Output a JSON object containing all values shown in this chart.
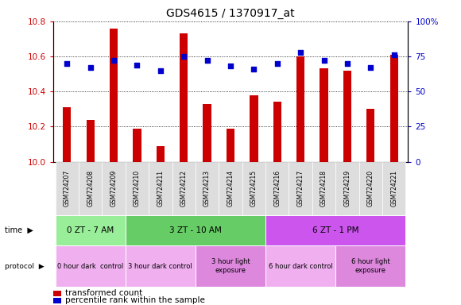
{
  "title": "GDS4615 / 1370917_at",
  "samples": [
    "GSM724207",
    "GSM724208",
    "GSM724209",
    "GSM724210",
    "GSM724211",
    "GSM724212",
    "GSM724213",
    "GSM724214",
    "GSM724215",
    "GSM724216",
    "GSM724217",
    "GSM724218",
    "GSM724219",
    "GSM724220",
    "GSM724221"
  ],
  "red_values": [
    10.31,
    10.24,
    10.76,
    10.19,
    10.09,
    10.73,
    10.33,
    10.19,
    10.38,
    10.34,
    10.6,
    10.53,
    10.52,
    10.3,
    10.61
  ],
  "blue_values": [
    70,
    67,
    72,
    69,
    65,
    75,
    72,
    68,
    66,
    70,
    78,
    72,
    70,
    67,
    76
  ],
  "ylim_left": [
    10.0,
    10.8
  ],
  "ylim_right": [
    0,
    100
  ],
  "yticks_left": [
    10.0,
    10.2,
    10.4,
    10.6,
    10.8
  ],
  "yticks_right": [
    0,
    25,
    50,
    75,
    100
  ],
  "bar_color": "#cc0000",
  "dot_color": "#0000cc",
  "time_groups": [
    {
      "label": "0 ZT - 7 AM",
      "start": 0,
      "end": 2,
      "color": "#99ee99"
    },
    {
      "label": "3 ZT - 10 AM",
      "start": 3,
      "end": 8,
      "color": "#66cc66"
    },
    {
      "label": "6 ZT - 1 PM",
      "start": 9,
      "end": 14,
      "color": "#cc55ee"
    }
  ],
  "protocol_groups": [
    {
      "label": "0 hour dark  control",
      "start": 0,
      "end": 2,
      "color": "#f0b0f0"
    },
    {
      "label": "3 hour dark control",
      "start": 3,
      "end": 5,
      "color": "#f0b0f0"
    },
    {
      "label": "3 hour light\nexposure",
      "start": 6,
      "end": 8,
      "color": "#dd88dd"
    },
    {
      "label": "6 hour dark control",
      "start": 9,
      "end": 11,
      "color": "#f0b0f0"
    },
    {
      "label": "6 hour light\nexposure",
      "start": 12,
      "end": 14,
      "color": "#dd88dd"
    }
  ],
  "legend_items": [
    {
      "label": "transformed count",
      "color": "#cc0000"
    },
    {
      "label": "percentile rank within the sample",
      "color": "#0000cc"
    }
  ]
}
